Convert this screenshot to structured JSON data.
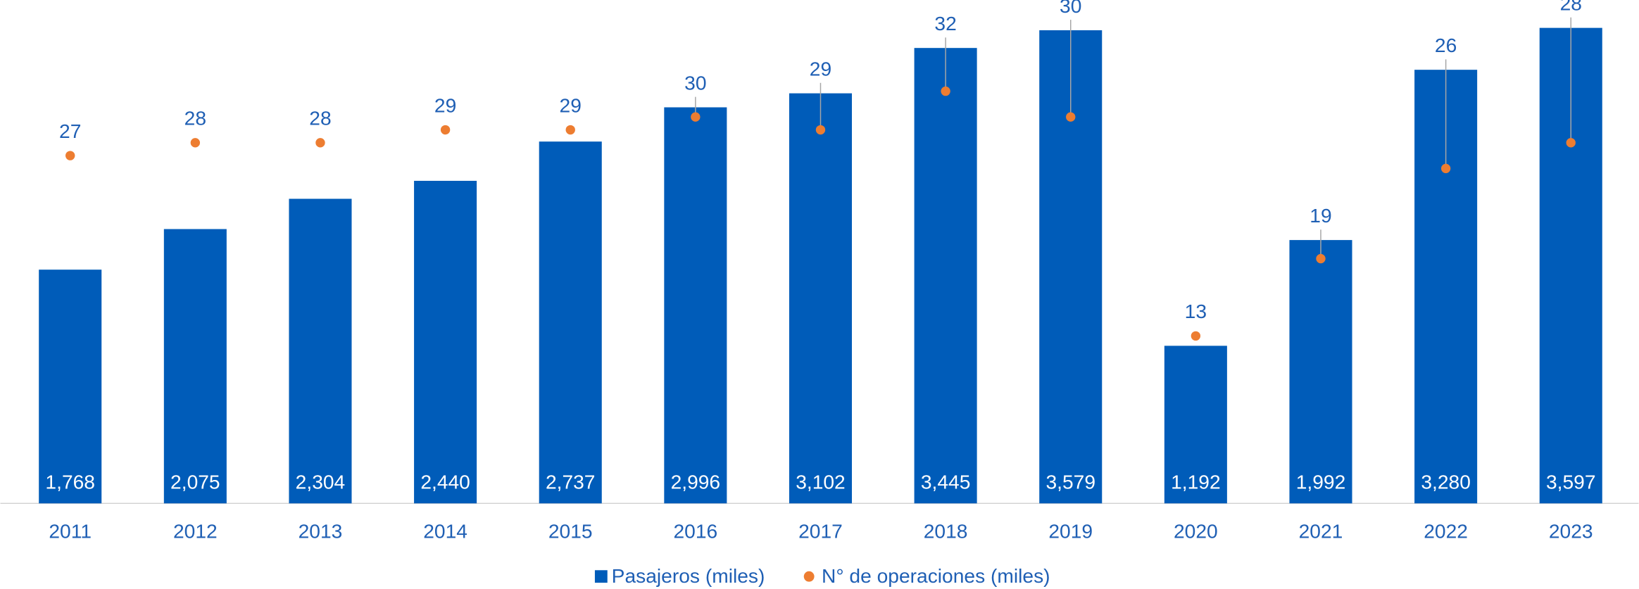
{
  "chart_data": {
    "type": "bar",
    "categories": [
      "2011",
      "2012",
      "2013",
      "2014",
      "2015",
      "2016",
      "2017",
      "2018",
      "2019",
      "2020",
      "2021",
      "2022",
      "2023"
    ],
    "series": [
      {
        "name": "Pasajeros (miles)",
        "color": "#005cb9",
        "type": "bar",
        "values": [
          1768,
          2075,
          2304,
          2440,
          2737,
          2996,
          3102,
          3445,
          3579,
          1192,
          1992,
          3280,
          3597
        ],
        "value_labels": [
          "1,768",
          "2,075",
          "2,304",
          "2,440",
          "2,737",
          "2,996",
          "3,102",
          "3,445",
          "3,579",
          "1,192",
          "1,992",
          "3,280",
          "3,597"
        ]
      },
      {
        "name": "N° de operaciones (miles)",
        "color": "#ed7d31",
        "type": "scatter",
        "axis": "y2",
        "values": [
          27,
          28,
          28,
          29,
          29,
          30,
          29,
          32,
          30,
          13,
          19,
          26,
          28
        ]
      }
    ],
    "ylim": [
      0,
      3800
    ],
    "y2lim": [
      0,
      39
    ],
    "legend": "bottom"
  }
}
